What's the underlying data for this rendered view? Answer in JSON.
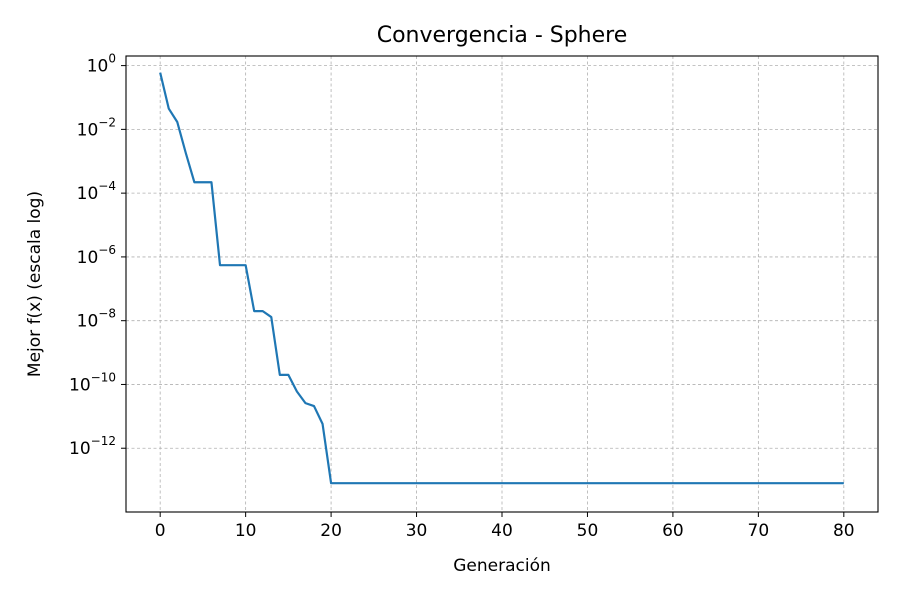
{
  "chart_data": {
    "type": "line",
    "title": "Convergencia - Sphere",
    "xlabel": "Generación",
    "ylabel": "Mejor f(x) (escala log)",
    "yscale": "log",
    "xlim": [
      -4,
      84
    ],
    "ylim": [
      1e-14,
      2.0
    ],
    "grid": true,
    "x_ticks": [
      0,
      10,
      20,
      30,
      40,
      50,
      60,
      70,
      80
    ],
    "y_ticks": [
      {
        "value": 1,
        "base": "10",
        "exp": "0"
      },
      {
        "value": 0.01,
        "base": "10",
        "exp": "−2"
      },
      {
        "value": 0.0001,
        "base": "10",
        "exp": "−4"
      },
      {
        "value": 1e-06,
        "base": "10",
        "exp": "−6"
      },
      {
        "value": 1e-08,
        "base": "10",
        "exp": "−8"
      },
      {
        "value": 1e-10,
        "base": "10",
        "exp": "−10"
      },
      {
        "value": 1e-12,
        "base": "10",
        "exp": "−12"
      }
    ],
    "series": [
      {
        "color": "#1f77b4",
        "x": [
          0,
          1,
          2,
          3,
          4,
          5,
          6,
          7,
          8,
          9,
          10,
          11,
          12,
          13,
          14,
          15,
          16,
          17,
          18,
          19,
          20,
          21,
          22,
          23,
          24,
          25,
          26,
          27,
          28,
          29,
          30,
          31,
          32,
          33,
          34,
          35,
          36,
          37,
          38,
          39,
          40,
          41,
          42,
          43,
          44,
          45,
          46,
          47,
          48,
          49,
          50,
          51,
          52,
          53,
          54,
          55,
          56,
          57,
          58,
          59,
          60,
          61,
          62,
          63,
          64,
          65,
          66,
          67,
          68,
          69,
          70,
          71,
          72,
          73,
          74,
          75,
          76,
          77,
          78,
          79,
          80
        ],
        "y": [
          0.6,
          0.045,
          0.017,
          0.0018,
          0.00022,
          0.00022,
          0.00022,
          5.5e-07,
          5.5e-07,
          5.5e-07,
          5.5e-07,
          2e-08,
          2e-08,
          1.3e-08,
          2e-10,
          2e-10,
          6e-11,
          2.6e-11,
          2.1e-11,
          5.8e-12,
          8e-14,
          8e-14,
          8e-14,
          8e-14,
          8e-14,
          8e-14,
          8e-14,
          8e-14,
          8e-14,
          8e-14,
          8e-14,
          8e-14,
          8e-14,
          8e-14,
          8e-14,
          8e-14,
          8e-14,
          8e-14,
          8e-14,
          8e-14,
          8e-14,
          8e-14,
          8e-14,
          8e-14,
          8e-14,
          8e-14,
          8e-14,
          8e-14,
          8e-14,
          8e-14,
          8e-14,
          8e-14,
          8e-14,
          8e-14,
          8e-14,
          8e-14,
          8e-14,
          8e-14,
          8e-14,
          8e-14,
          8e-14,
          8e-14,
          8e-14,
          8e-14,
          8e-14,
          8e-14,
          8e-14,
          8e-14,
          8e-14,
          8e-14,
          8e-14,
          8e-14,
          8e-14,
          8e-14,
          8e-14,
          8e-14,
          8e-14,
          8e-14,
          8e-14,
          8e-14,
          8e-14
        ]
      }
    ]
  }
}
